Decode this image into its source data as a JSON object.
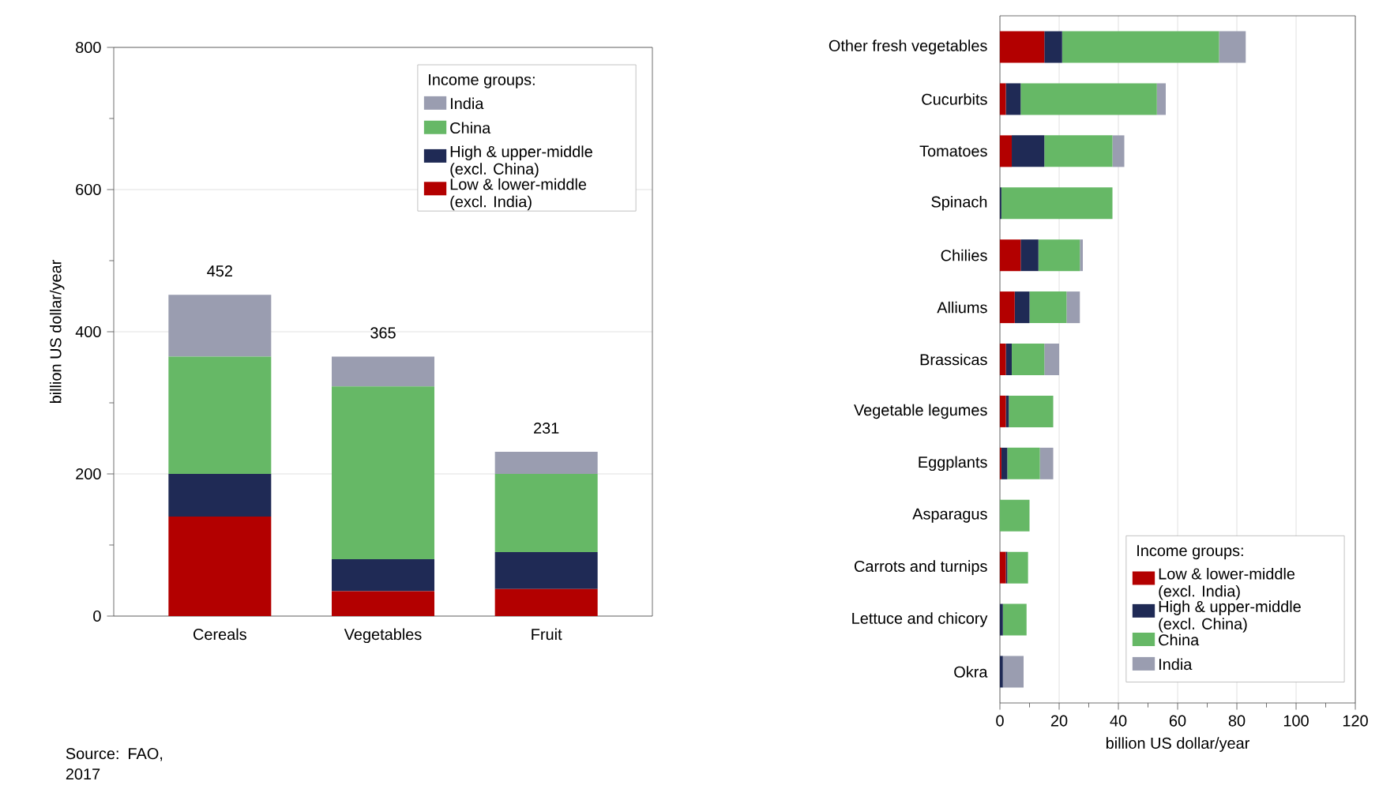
{
  "chart_data": [
    {
      "type": "bar",
      "stacked": true,
      "categories": [
        "Cereals",
        "Vegetables",
        "Fruit"
      ],
      "ylabel": "billion US dollar/year",
      "legend_title": "Income groups:",
      "legend": "top right",
      "grid": "y",
      "ylim": [
        0,
        800
      ],
      "yticks": [
        0,
        {
          "value": 100,
          "label": null
        },
        200,
        {
          "value": 300,
          "label": null
        },
        400,
        {
          "value": 500,
          "label": null
        },
        600,
        {
          "value": 700,
          "label": null
        },
        800
      ],
      "series": [
        {
          "name": "Low & lower-middle (excl. India)",
          "color": "#b30000",
          "values": [
            140,
            35,
            38
          ]
        },
        {
          "name": "High & upper-middle (excl. China)",
          "color": "#1f2a55",
          "values": [
            60,
            45,
            52
          ]
        },
        {
          "name": "China",
          "color": "#66b866",
          "values": [
            165,
            243,
            110
          ]
        },
        {
          "name": "India",
          "color": "#9a9db0",
          "values": [
            87,
            42,
            31
          ]
        }
      ],
      "totals": [
        "452",
        "365",
        "231"
      ],
      "annotations": [
        "Source: FAO, 2017"
      ]
    },
    {
      "type": "bar",
      "stacked": true,
      "orientation": "horizontal",
      "categories": [
        "Other fresh vegetables",
        "Cucurbits",
        "Tomatoes",
        "Spinach",
        "Chilies",
        "Alliums",
        "Brassicas",
        "Vegetable legumes",
        "Eggplants",
        "Asparagus",
        "Carrots and turnips",
        "Lettuce and chicory",
        "Okra"
      ],
      "xlabel": "billion US dollar/year",
      "legend_title": "Income groups:",
      "legend": "bottom right",
      "grid": "x",
      "xlim": [
        0,
        120
      ],
      "xticks": [
        0,
        {
          "value": 10,
          "label": null
        },
        20,
        {
          "value": 30,
          "label": null
        },
        40,
        {
          "value": 50,
          "label": null
        },
        60,
        {
          "value": 70,
          "label": null
        },
        80,
        {
          "value": 90,
          "label": null
        },
        100,
        {
          "value": 110,
          "label": null
        },
        120
      ],
      "series": [
        {
          "name": "Low & lower-middle (excl. India)",
          "color": "#b30000",
          "values": [
            15,
            2,
            4,
            0,
            7,
            5,
            2,
            2,
            0.5,
            0,
            2,
            0,
            0
          ]
        },
        {
          "name": "High & upper-middle (excl. China)",
          "color": "#1f2a55",
          "values": [
            6,
            5,
            11,
            0.5,
            6,
            5,
            2,
            1,
            2,
            0,
            0.5,
            1,
            1
          ]
        },
        {
          "name": "China",
          "color": "#66b866",
          "values": [
            53,
            46,
            23,
            37.5,
            14,
            12.5,
            11,
            15,
            11,
            10,
            7,
            8,
            0
          ]
        },
        {
          "name": "India",
          "color": "#9a9db0",
          "values": [
            9,
            3,
            4,
            0,
            1,
            4.5,
            5,
            0,
            4.5,
            0,
            0,
            0,
            7
          ]
        }
      ]
    }
  ]
}
